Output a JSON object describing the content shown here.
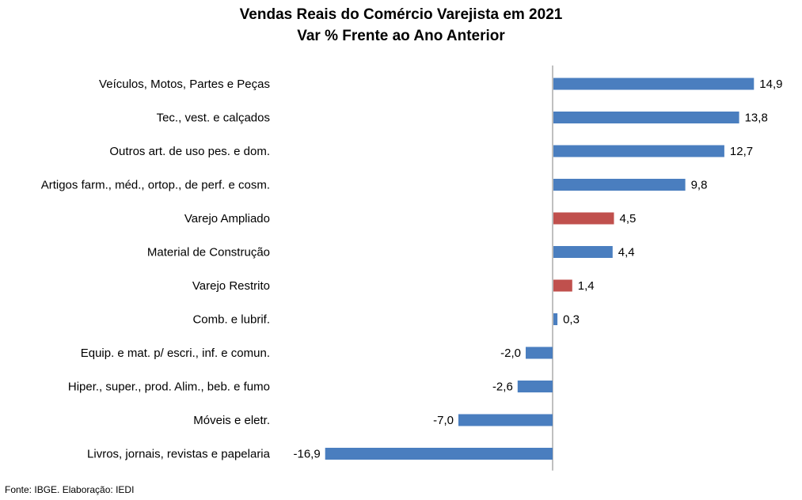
{
  "title": "Vendas Reais do Comércio Varejista em 2021",
  "subtitle": "Var % Frente ao Ano Anterior",
  "source": "Fonte: IBGE. Elaboração: IEDI",
  "colors": {
    "default": "#4a7ebf",
    "highlight": "#c0504d",
    "axis": "#808080"
  },
  "chart_data": {
    "type": "bar",
    "orientation": "horizontal",
    "title": "Vendas Reais do Comércio Varejista em 2021",
    "subtitle": "Var % Frente ao Ano Anterior",
    "xlabel": "",
    "ylabel": "",
    "xlim": [
      -16.9,
      14.9
    ],
    "grid": false,
    "categories": [
      "Veículos, Motos, Partes e Peças",
      "Tec., vest. e calçados",
      "Outros art. de uso pes. e dom.",
      "Artigos farm., méd., ortop., de perf. e cosm.",
      "Varejo Ampliado",
      "Material de Construção",
      "Varejo Restrito",
      "Comb. e lubrif.",
      "Equip. e mat. p/ escri., inf. e comun.",
      "Hiper., super., prod. Alim., beb. e fumo",
      "Móveis e eletr.",
      "Livros, jornais, revistas e papelaria"
    ],
    "values": [
      14.9,
      13.8,
      12.7,
      9.8,
      4.5,
      4.4,
      1.4,
      0.3,
      -2.0,
      -2.6,
      -7.0,
      -16.9
    ],
    "value_labels": [
      "14,9",
      "13,8",
      "12,7",
      "9,8",
      "4,5",
      "4,4",
      "1,4",
      "0,3",
      "-2,0",
      "-2,6",
      "-7,0",
      "-16,9"
    ],
    "highlight": [
      false,
      false,
      false,
      false,
      true,
      false,
      true,
      false,
      false,
      false,
      false,
      false
    ]
  }
}
